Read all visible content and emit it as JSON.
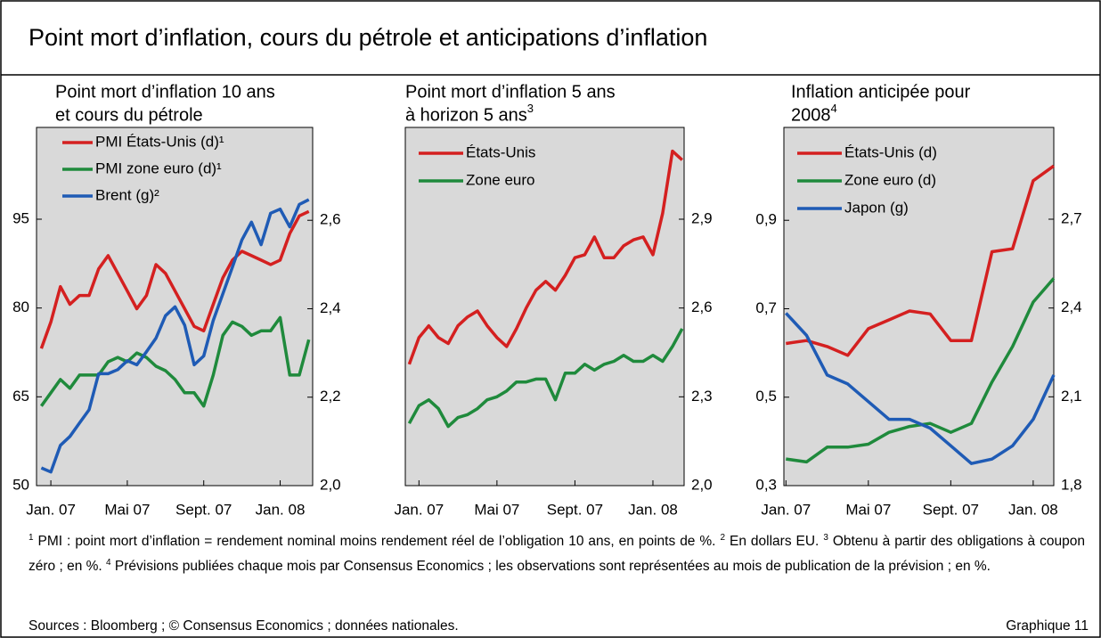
{
  "title": "Point mort d’inflation, cours du pétrole et anticipations d’inflation",
  "chart_data": [
    {
      "type": "line",
      "title": [
        "Point mort d’inflation 10 ans",
        "et cours du pétrole"
      ],
      "x": [
        -0.5,
        0,
        0.5,
        1,
        1.5,
        2,
        2.5,
        3,
        3.5,
        4,
        4.5,
        5,
        5.5,
        6,
        6.5,
        7,
        7.5,
        8,
        8.5,
        9,
        9.5,
        10,
        10.5,
        11,
        11.5,
        12,
        12.5,
        13,
        13.5
      ],
      "xlim": [
        -0.75,
        13.7
      ],
      "xticks": [
        {
          "value": 0,
          "label": "Jan. 07"
        },
        {
          "value": 4,
          "label": "Mai 07"
        },
        {
          "value": 8,
          "label": "Sept. 07"
        },
        {
          "value": 12,
          "label": "Jan. 08"
        }
      ],
      "ylim": [
        50,
        110.5
      ],
      "yticks": [
        50,
        65,
        80,
        95
      ],
      "y2lim": [
        2.0,
        2.81
      ],
      "y2ticks": [
        {
          "value": 2.0,
          "label": "2,0"
        },
        {
          "value": 2.2,
          "label": "2,2"
        },
        {
          "value": 2.4,
          "label": "2,4"
        },
        {
          "value": 2.6,
          "label": "2,6"
        }
      ],
      "series": [
        {
          "name": "PMI États-Unis (d)¹",
          "color": "#d42020",
          "axis": "y2",
          "values": [
            2.31,
            2.37,
            2.45,
            2.41,
            2.43,
            2.43,
            2.49,
            2.52,
            2.48,
            2.44,
            2.4,
            2.43,
            2.5,
            2.48,
            2.44,
            2.4,
            2.36,
            2.35,
            2.41,
            2.47,
            2.51,
            2.53,
            2.52,
            2.51,
            2.5,
            2.51,
            2.57,
            2.61,
            2.62
          ]
        },
        {
          "name": "PMI zone euro (d)¹",
          "color": "#1f8a3c",
          "axis": "y2",
          "values": [
            2.18,
            2.21,
            2.24,
            2.22,
            2.25,
            2.25,
            2.25,
            2.28,
            2.29,
            2.28,
            2.3,
            2.29,
            2.27,
            2.26,
            2.24,
            2.21,
            2.21,
            2.18,
            2.25,
            2.34,
            2.37,
            2.36,
            2.34,
            2.35,
            2.35,
            2.38,
            2.25,
            2.25,
            2.33
          ]
        },
        {
          "name": "Brent (g)²",
          "color": "#1f5bb5",
          "values": [
            53.0,
            52.3,
            56.8,
            58.3,
            60.6,
            62.8,
            68.9,
            68.9,
            69.6,
            71.1,
            70.4,
            72.6,
            74.9,
            78.7,
            80.2,
            77.1,
            70.4,
            71.9,
            77.9,
            82.4,
            86.9,
            91.5,
            94.5,
            90.7,
            96.0,
            96.7,
            93.7,
            97.5,
            98.3
          ]
        }
      ]
    },
    {
      "type": "line",
      "title": [
        "Point mort d’inflation 5 ans",
        "à horizon 5 ans"
      ],
      "title_note": "3",
      "x": [
        -0.5,
        0,
        0.5,
        1,
        1.5,
        2,
        2.5,
        3,
        3.5,
        4,
        4.5,
        5,
        5.5,
        6,
        6.5,
        7,
        7.5,
        8,
        8.5,
        9,
        9.5,
        10,
        10.5,
        11,
        11.5,
        12,
        12.5,
        13,
        13.5
      ],
      "xlim": [
        -0.7,
        13.6
      ],
      "xticks": [
        {
          "value": 0,
          "label": "Jan. 07"
        },
        {
          "value": 4,
          "label": "Mai 07"
        },
        {
          "value": 8,
          "label": "Sept. 07"
        },
        {
          "value": 12,
          "label": "Jan. 08"
        }
      ],
      "y2lim": [
        2.0,
        3.21
      ],
      "y2ticks": [
        {
          "value": 2.0,
          "label": "2,0"
        },
        {
          "value": 2.3,
          "label": "2,3"
        },
        {
          "value": 2.6,
          "label": "2,6"
        },
        {
          "value": 2.9,
          "label": "2,9"
        }
      ],
      "series": [
        {
          "name": "États-Unis",
          "color": "#d42020",
          "axis": "y2",
          "values": [
            2.41,
            2.5,
            2.54,
            2.5,
            2.48,
            2.54,
            2.57,
            2.59,
            2.54,
            2.5,
            2.47,
            2.53,
            2.6,
            2.66,
            2.69,
            2.66,
            2.71,
            2.77,
            2.78,
            2.84,
            2.77,
            2.77,
            2.81,
            2.83,
            2.84,
            2.78,
            2.92,
            3.13,
            3.1
          ]
        },
        {
          "name": "Zone euro",
          "color": "#1f8a3c",
          "axis": "y2",
          "values": [
            2.21,
            2.27,
            2.29,
            2.26,
            2.2,
            2.23,
            2.24,
            2.26,
            2.29,
            2.3,
            2.32,
            2.35,
            2.35,
            2.36,
            2.36,
            2.29,
            2.38,
            2.38,
            2.41,
            2.39,
            2.41,
            2.42,
            2.44,
            2.42,
            2.42,
            2.44,
            2.42,
            2.47,
            2.53
          ]
        }
      ]
    },
    {
      "type": "line",
      "title": [
        "Inflation anticipée pour",
        "2008"
      ],
      "title_note": "4",
      "x": [
        0,
        1,
        2,
        3,
        4,
        5,
        6,
        7,
        8,
        9,
        10,
        11,
        12,
        13
      ],
      "xlim": [
        -0.1,
        13
      ],
      "xticks": [
        {
          "value": 0,
          "label": "Jan. 07"
        },
        {
          "value": 4,
          "label": "Mai 07"
        },
        {
          "value": 8,
          "label": "Sept. 07"
        },
        {
          "value": 12,
          "label": "Jan. 08"
        }
      ],
      "ylim": [
        0.3,
        1.11
      ],
      "yticks": [
        {
          "value": 0.3,
          "label": "0,3"
        },
        {
          "value": 0.5,
          "label": "0,5"
        },
        {
          "value": 0.7,
          "label": "0,7"
        },
        {
          "value": 0.9,
          "label": "0,9"
        }
      ],
      "y2lim": [
        1.8,
        3.01
      ],
      "y2ticks": [
        {
          "value": 1.8,
          "label": "1,8"
        },
        {
          "value": 2.1,
          "label": "2,1"
        },
        {
          "value": 2.4,
          "label": "2,4"
        },
        {
          "value": 2.7,
          "label": "2,7"
        }
      ],
      "series": [
        {
          "name": "États-Unis (d)",
          "color": "#d42020",
          "axis": "y2",
          "values": [
            2.28,
            2.29,
            2.27,
            2.24,
            2.33,
            2.36,
            2.39,
            2.38,
            2.29,
            2.29,
            2.59,
            2.6,
            2.83,
            2.88
          ]
        },
        {
          "name": "Zone euro (d)",
          "color": "#1f8a3c",
          "axis": "y2",
          "values": [
            1.89,
            1.88,
            1.93,
            1.93,
            1.94,
            1.98,
            2.0,
            2.01,
            1.98,
            2.01,
            2.15,
            2.27,
            2.42,
            2.5
          ]
        },
        {
          "name": "Japon (g)",
          "color": "#1f5bb5",
          "values": [
            0.69,
            0.64,
            0.55,
            0.53,
            0.49,
            0.45,
            0.45,
            0.43,
            0.39,
            0.35,
            0.36,
            0.39,
            0.45,
            0.55
          ]
        }
      ]
    }
  ],
  "footnotes": [
    {
      "mark": "1",
      "text": "PMI : point mort d’inflation = rendement nominal moins rendement réel de l’obligation 10 ans, en points de %."
    },
    {
      "mark": "2",
      "text": "En dollars EU."
    },
    {
      "mark": "3",
      "text": "Obtenu à partir des obligations à coupon zéro ; en %."
    },
    {
      "mark": "4",
      "text": "Prévisions publiées chaque mois par Consensus Economics ; les observations sont représentées au mois de publication de la prévision ; en %."
    }
  ],
  "sources": "Sources : Bloomberg ; © Consensus Economics ; données nationales.",
  "figure_label": "Graphique 11"
}
